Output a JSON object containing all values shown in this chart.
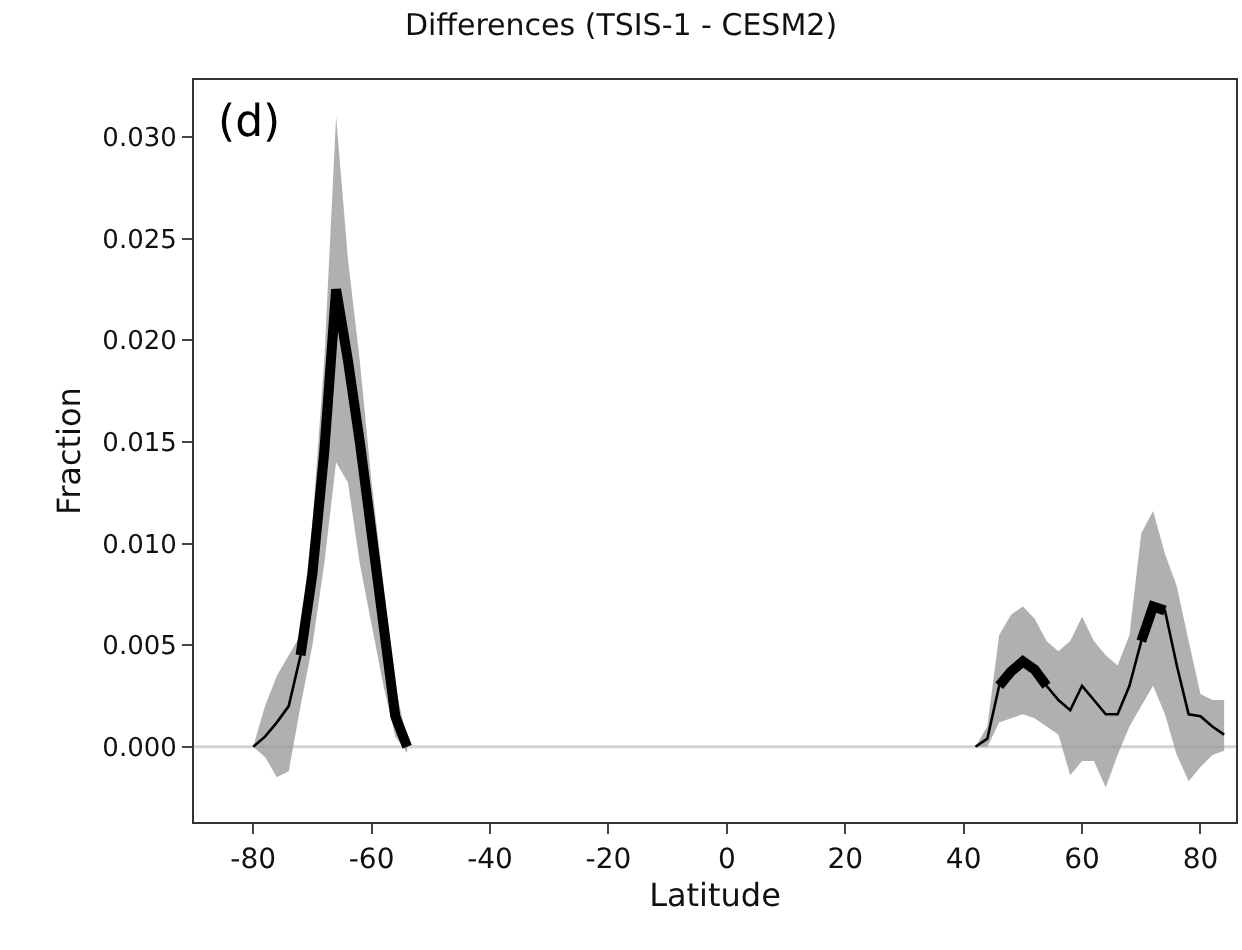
{
  "chart_data": {
    "type": "line",
    "title": "Differences (TSIS-1 - CESM2)",
    "xlabel": "Latitude",
    "ylabel": "Fraction",
    "annotations": [
      "(d)"
    ],
    "xlim": [
      -90,
      86
    ],
    "xticks": [
      -80,
      -60,
      -40,
      -20,
      0,
      20,
      40,
      60,
      80
    ],
    "ylim": [
      -0.0037,
      0.0328
    ],
    "yticks": [
      {
        "value": 0,
        "label": "0.000"
      },
      {
        "value": 0.005,
        "label": "0.005"
      },
      {
        "value": 0.01,
        "label": "0.010"
      },
      {
        "value": 0.015,
        "label": "0.015"
      },
      {
        "value": 0.02,
        "label": "0.020"
      },
      {
        "value": 0.025,
        "label": "0.025"
      },
      {
        "value": 0.03,
        "label": "0.030"
      }
    ],
    "grid": false,
    "line_style": "solid",
    "marker": "none",
    "ref_lines": [
      {
        "axis": "y",
        "value": 0,
        "color": "#d3d3d3"
      }
    ],
    "series": [
      {
        "color": "#000000",
        "x": [
          -80,
          -78,
          -76,
          -74,
          -72,
          -70,
          -68,
          -66,
          -64,
          -62,
          -60,
          -58,
          -56,
          -54
        ],
        "values": [
          0,
          0.0005,
          0.0012,
          0.002,
          0.0045,
          0.0085,
          0.0145,
          0.0225,
          0.019,
          0.015,
          0.0105,
          0.006,
          0.0015,
          0
        ],
        "lower": [
          0,
          -0.0005,
          -0.0015,
          -0.0012,
          0.002,
          0.005,
          0.009,
          0.014,
          0.013,
          0.009,
          0.006,
          0.003,
          0.0005,
          -0.0003
        ],
        "upper": [
          0,
          0.002,
          0.0035,
          0.0045,
          0.0055,
          0.011,
          0.019,
          0.031,
          0.024,
          0.019,
          0.013,
          0.008,
          0.003,
          0.0003
        ]
      },
      {
        "color": "#000000",
        "x": [
          42,
          44,
          46,
          48,
          50,
          52,
          54,
          56,
          58,
          60,
          62,
          64,
          66,
          68,
          70,
          72,
          74,
          76,
          78,
          80,
          82,
          84
        ],
        "values": [
          0,
          0.0004,
          0.003,
          0.0037,
          0.0042,
          0.0038,
          0.003,
          0.0023,
          0.0018,
          0.003,
          0.0023,
          0.0016,
          0.0016,
          0.003,
          0.0052,
          0.0069,
          0.0067,
          0.004,
          0.0016,
          0.0015,
          0.001,
          0.0006
        ],
        "lower": [
          0,
          0,
          0.0012,
          0.0014,
          0.0016,
          0.0014,
          0.001,
          0.0006,
          -0.0014,
          -0.0007,
          -0.0007,
          -0.002,
          -0.0004,
          0.001,
          0.002,
          0.003,
          0.0016,
          -0.0004,
          -0.0017,
          -0.001,
          -0.0004,
          -0.0002
        ],
        "upper": [
          0,
          0.001,
          0.0055,
          0.0065,
          0.0069,
          0.0063,
          0.0052,
          0.0047,
          0.0052,
          0.0064,
          0.0052,
          0.0045,
          0.004,
          0.0055,
          0.0105,
          0.0116,
          0.0095,
          0.0079,
          0.0052,
          0.0026,
          0.0023,
          0.0023
        ]
      },
      {
        "color": "#000000",
        "x": [
          -72,
          -70,
          -68,
          -66,
          -64,
          -62,
          -60,
          -58,
          -56,
          -54
        ],
        "values": [
          0.0045,
          0.0085,
          0.0145,
          0.0225,
          0.019,
          0.015,
          0.0105,
          0.006,
          0.0015,
          0
        ]
      },
      {
        "color": "#000000",
        "x": [
          46,
          48,
          50,
          52,
          54
        ],
        "values": [
          0.003,
          0.0037,
          0.0042,
          0.0038,
          0.003
        ]
      },
      {
        "color": "#000000",
        "x": [
          70,
          72,
          74
        ],
        "values": [
          0.0052,
          0.0069,
          0.0067
        ]
      }
    ]
  }
}
